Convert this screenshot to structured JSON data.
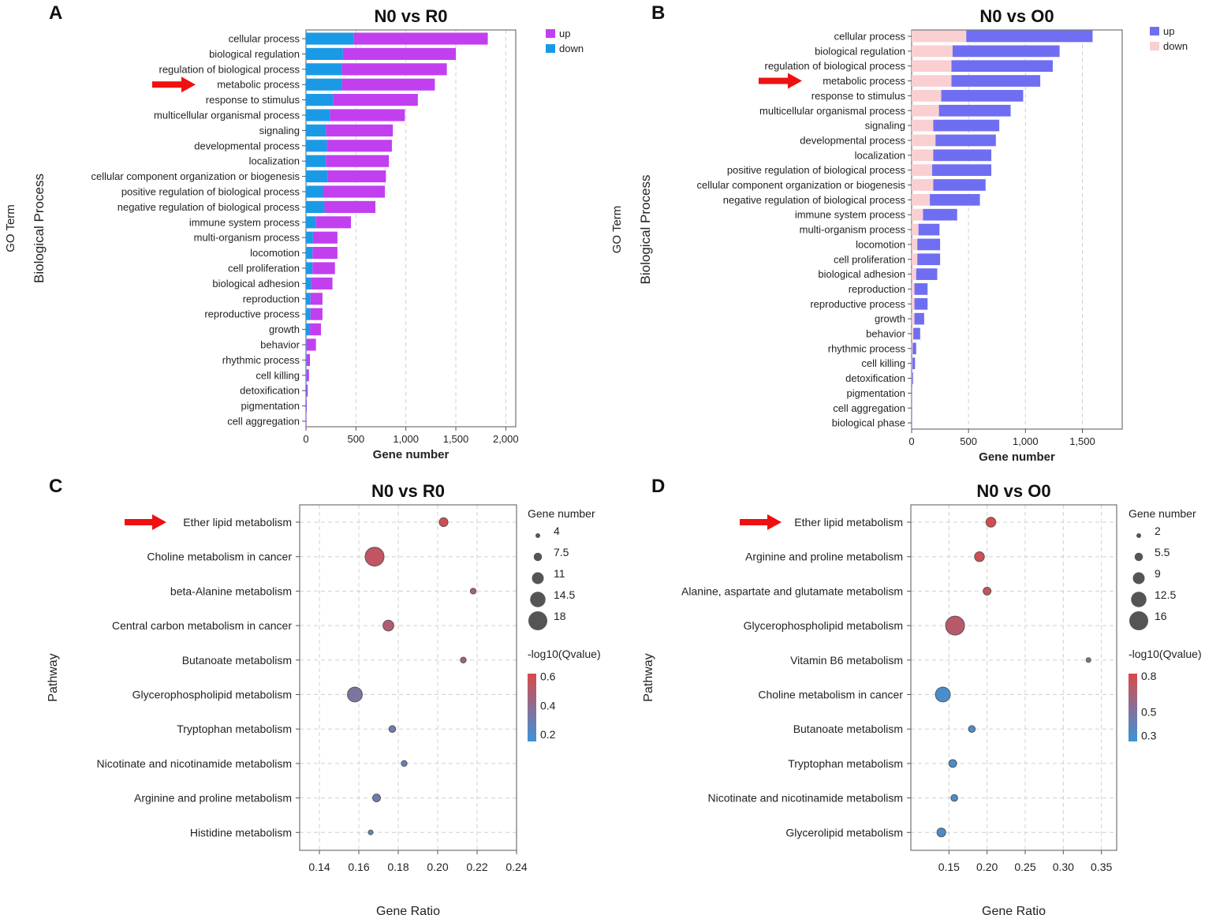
{
  "colors": {
    "up_A": "#c23ff0",
    "down_A": "#1a9ae6",
    "up_B": "#6f6ef2",
    "down_B": "#f9cfd2",
    "arrow": "#ee1111",
    "grad_high": "#d94a4a",
    "grad_mid": "#8a6e96",
    "grad_low": "#3c94d8"
  },
  "icons": {
    "highlight": "red-arrow-icon"
  },
  "chart_data": [
    {
      "panel": "A",
      "type": "bar",
      "stacked": true,
      "orientation": "horizontal",
      "title": "N0 vs R0",
      "xlabel": "Gene number",
      "ylabel": "GO Term",
      "ylabel2": "Biological Process",
      "xlim": [
        0,
        2100
      ],
      "xticks": [
        0,
        500,
        1000,
        1500,
        2000
      ],
      "xtick_labels": [
        "0",
        "500",
        "1,000",
        "1,500",
        "2,000"
      ],
      "legend": [
        "up",
        "down"
      ],
      "legend_position": "top-right",
      "highlight": "metabolic process",
      "categories": [
        "cellular process",
        "biological regulation",
        "regulation of biological process",
        "metabolic process",
        "response to stimulus",
        "multicellular organismal process",
        "signaling",
        "developmental process",
        "localization",
        "cellular component organization or biogenesis",
        "positive regulation of biological process",
        "negative regulation of biological process",
        "immune system process",
        "multi-organism process",
        "locomotion",
        "cell proliferation",
        "biological adhesion",
        "reproduction",
        "reproductive process",
        "growth",
        "behavior",
        "rhythmic process",
        "cell killing",
        "detoxification",
        "pigmentation",
        "cell aggregation"
      ],
      "series": [
        {
          "name": "down",
          "values": [
            480,
            370,
            360,
            360,
            270,
            240,
            200,
            210,
            200,
            220,
            170,
            185,
            100,
            70,
            65,
            65,
            50,
            45,
            45,
            40,
            5,
            5,
            5,
            3,
            2,
            1
          ]
        },
        {
          "name": "up",
          "values": [
            1340,
            1130,
            1050,
            930,
            850,
            750,
            670,
            650,
            630,
            580,
            620,
            510,
            350,
            245,
            250,
            225,
            215,
            120,
            120,
            110,
            95,
            35,
            25,
            15,
            6,
            2
          ]
        }
      ]
    },
    {
      "panel": "B",
      "type": "bar",
      "stacked": true,
      "orientation": "horizontal",
      "title": "N0 vs O0",
      "xlabel": "Gene number",
      "ylabel": "GO Term",
      "ylabel2": "Biological Process",
      "xlim": [
        0,
        1850
      ],
      "xticks": [
        0,
        500,
        1000,
        1500
      ],
      "xtick_labels": [
        "0",
        "500",
        "1,000",
        "1,500"
      ],
      "legend": [
        "up",
        "down"
      ],
      "legend_position": "top-right",
      "highlight": "metabolic process",
      "categories": [
        "cellular process",
        "biological regulation",
        "regulation of biological process",
        "metabolic process",
        "response to stimulus",
        "multicellular organismal process",
        "signaling",
        "developmental process",
        "localization",
        "positive regulation of biological process",
        "cellular component organization or biogenesis",
        "negative regulation of biological process",
        "immune system process",
        "multi-organism process",
        "locomotion",
        "cell proliferation",
        "biological adhesion",
        "reproduction",
        "reproductive process",
        "growth",
        "behavior",
        "rhythmic process",
        "cell killing",
        "detoxification",
        "pigmentation",
        "cell aggregation",
        "biological phase"
      ],
      "series": [
        {
          "name": "down",
          "values": [
            480,
            360,
            350,
            350,
            260,
            240,
            190,
            210,
            190,
            180,
            190,
            160,
            100,
            60,
            50,
            50,
            40,
            25,
            25,
            25,
            15,
            8,
            5,
            3,
            1,
            1,
            1
          ]
        },
        {
          "name": "up",
          "values": [
            1110,
            940,
            890,
            780,
            720,
            630,
            580,
            530,
            510,
            520,
            460,
            440,
            300,
            185,
            200,
            200,
            185,
            115,
            115,
            85,
            60,
            32,
            25,
            10,
            3,
            2,
            1
          ]
        }
      ]
    },
    {
      "panel": "C",
      "type": "scatter",
      "title": "N0 vs R0",
      "xlabel": "Gene Ratio",
      "ylabel": "Pathway",
      "xlim": [
        0.13,
        0.24
      ],
      "xticks": [
        0.14,
        0.16,
        0.18,
        0.2,
        0.22,
        0.24
      ],
      "xtick_labels": [
        "0.14",
        "0.16",
        "0.18",
        "0.20",
        "0.22",
        "0.24"
      ],
      "highlight": "Ether lipid metabolism",
      "size_legend_title": "Gene number",
      "size_legend": [
        4,
        7.5,
        11,
        14.5,
        18
      ],
      "size_legend_labels": [
        "4",
        "7.5",
        "11",
        "14.5",
        "18"
      ],
      "size_range": [
        4,
        18
      ],
      "color_legend_title": "-log10(Qvalue)",
      "color_range": [
        0.15,
        0.62
      ],
      "color_ticks": [
        0.6,
        0.4,
        0.2
      ],
      "color_tick_labels": [
        "0.6",
        "0.4",
        "0.2"
      ],
      "categories": [
        "Ether lipid metabolism",
        "Choline metabolism in cancer",
        "beta-Alanine metabolism",
        "Central carbon metabolism in cancer",
        "Butanoate metabolism",
        "Glycerophospholipid metabolism",
        "Tryptophan metabolism",
        "Nicotinate and nicotinamide metabolism",
        "Arginine and proline metabolism",
        "Histidine metabolism"
      ],
      "x": [
        0.203,
        0.168,
        0.218,
        0.175,
        0.213,
        0.158,
        0.177,
        0.183,
        0.169,
        0.166
      ],
      "size": [
        8,
        18,
        5,
        10,
        5,
        14,
        6,
        5,
        7,
        4
      ],
      "qvalue": [
        0.6,
        0.55,
        0.5,
        0.5,
        0.45,
        0.35,
        0.3,
        0.25,
        0.3,
        0.2
      ]
    },
    {
      "panel": "D",
      "type": "scatter",
      "title": "N0 vs O0",
      "xlabel": "Gene Ratio",
      "ylabel": "Pathway",
      "xlim": [
        0.1,
        0.37
      ],
      "xticks": [
        0.15,
        0.2,
        0.25,
        0.3,
        0.35
      ],
      "xtick_labels": [
        "0.15",
        "0.20",
        "0.25",
        "0.30",
        "0.35"
      ],
      "highlight": "Ether lipid metabolism",
      "size_legend_title": "Gene number",
      "size_legend": [
        2,
        5.5,
        9,
        12.5,
        16
      ],
      "size_legend_labels": [
        "2",
        "5.5",
        "9",
        "12.5",
        "16"
      ],
      "size_range": [
        2,
        16
      ],
      "color_legend_title": "-log10(Qvalue)",
      "color_range": [
        0.25,
        0.82
      ],
      "color_ticks": [
        0.8,
        0.5,
        0.3
      ],
      "color_tick_labels": [
        "0.8",
        "0.5",
        "0.3"
      ],
      "categories": [
        "Ether lipid metabolism",
        "Arginine and proline metabolism",
        "Alanine, aspartate and glutamate metabolism",
        "Glycerophospholipid metabolism",
        "Vitamin B6 metabolism",
        "Choline metabolism in cancer",
        "Butanoate metabolism",
        "Tryptophan metabolism",
        "Nicotinate and nicotinamide metabolism",
        "Glycerolipid metabolism"
      ],
      "x": [
        0.205,
        0.19,
        0.2,
        0.158,
        0.333,
        0.142,
        0.18,
        0.155,
        0.157,
        0.14
      ],
      "size": [
        7,
        7,
        5,
        16,
        2,
        12,
        4,
        5,
        4,
        6
      ],
      "qvalue": [
        0.8,
        0.78,
        0.75,
        0.7,
        0.55,
        0.3,
        0.3,
        0.3,
        0.3,
        0.3
      ]
    }
  ]
}
